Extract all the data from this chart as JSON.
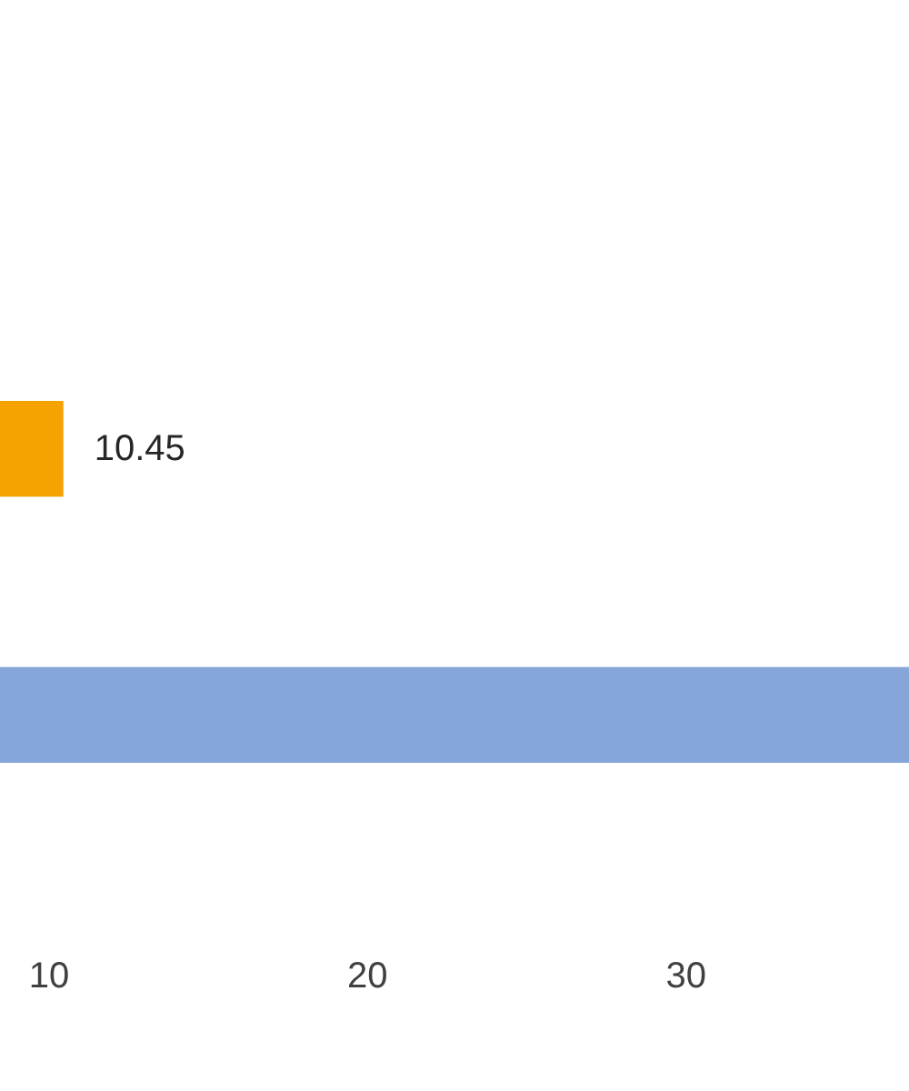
{
  "chart_data": {
    "type": "bar",
    "orientation": "horizontal",
    "categories": [
      null,
      null
    ],
    "values": [
      10.45,
      37
    ],
    "colors": [
      "#f5a300",
      "#86a6d9"
    ],
    "value_labels": [
      "10.45",
      null
    ],
    "xlim": [
      8.46,
      37
    ],
    "xticks": [
      10,
      20,
      30
    ],
    "grid": false
  }
}
